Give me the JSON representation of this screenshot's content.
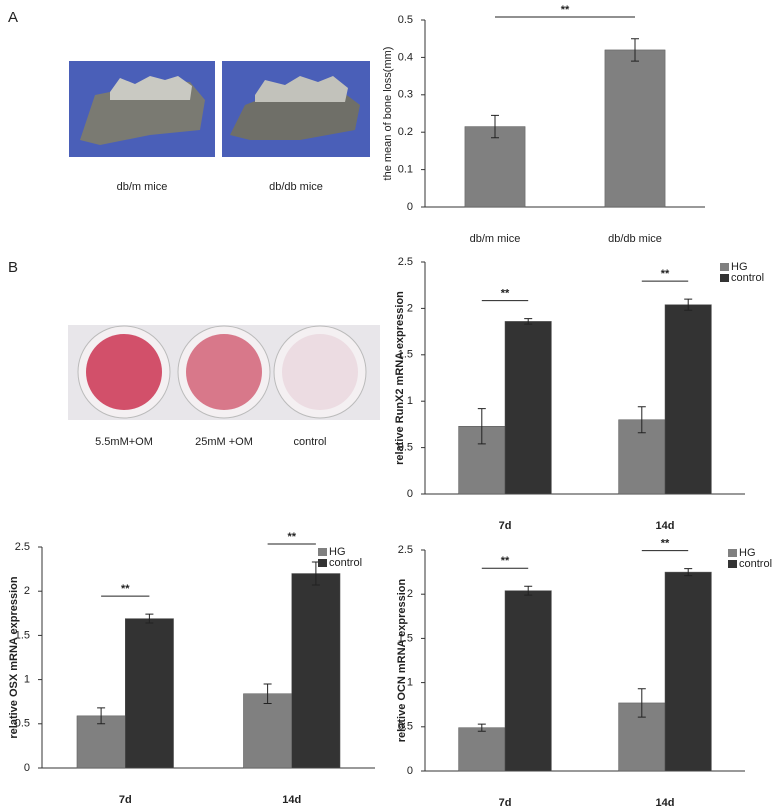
{
  "panel_labels": [
    "A",
    "B"
  ],
  "images": {
    "mice": [
      "db/m mice",
      "db/db mice"
    ],
    "stain": [
      "5.5mM+OM",
      "25mM +OM",
      "control"
    ]
  },
  "chart_data": [
    {
      "type": "bar",
      "ylabel": "the mean of bone loss(mm)",
      "categories": [
        "db/m mice",
        "db/db mice"
      ],
      "values": [
        0.215,
        0.42
      ],
      "errors": [
        0.03,
        0.03
      ],
      "color": "#808080",
      "ylim": [
        0,
        0.5
      ],
      "yticks": [
        0,
        0.1,
        0.2,
        0.3,
        0.4,
        0.5
      ],
      "annotations": [
        "**"
      ]
    },
    {
      "type": "bar",
      "ylabel": "relative RunX2 mRNA expression",
      "categories": [
        "7d",
        "14d"
      ],
      "series": [
        {
          "name": "HG",
          "color": "#808080",
          "values": [
            0.73,
            0.8
          ],
          "errors": [
            0.19,
            0.14
          ]
        },
        {
          "name": "control",
          "color": "#333333",
          "values": [
            1.86,
            2.04
          ],
          "errors": [
            0.03,
            0.06
          ]
        }
      ],
      "ylim": [
        0,
        2.5
      ],
      "yticks": [
        0,
        0.5,
        1,
        1.5,
        2,
        2.5
      ],
      "annotations": [
        "**",
        "**"
      ]
    },
    {
      "type": "bar",
      "ylabel": "relative OSX mRNA expression",
      "categories": [
        "7d",
        "14d"
      ],
      "series": [
        {
          "name": "HG",
          "color": "#808080",
          "values": [
            0.59,
            0.84
          ],
          "errors": [
            0.09,
            0.11
          ]
        },
        {
          "name": "control",
          "color": "#333333",
          "values": [
            1.69,
            2.2
          ],
          "errors": [
            0.05,
            0.13
          ]
        }
      ],
      "ylim": [
        0,
        2.5
      ],
      "yticks": [
        0,
        0.5,
        1,
        1.5,
        2,
        2.5
      ],
      "annotations": [
        "**",
        "**"
      ]
    },
    {
      "type": "bar",
      "ylabel": "relative OCN mRNA expression",
      "categories": [
        "7d",
        "14d"
      ],
      "series": [
        {
          "name": "HG",
          "color": "#808080",
          "values": [
            0.49,
            0.77
          ],
          "errors": [
            0.04,
            0.16
          ]
        },
        {
          "name": "control",
          "color": "#333333",
          "values": [
            2.04,
            2.25
          ],
          "errors": [
            0.05,
            0.04
          ]
        }
      ],
      "ylim": [
        0,
        2.5
      ],
      "yticks": [
        0,
        0.5,
        1,
        1.5,
        2,
        2.5
      ],
      "annotations": [
        "**",
        "**"
      ]
    }
  ]
}
